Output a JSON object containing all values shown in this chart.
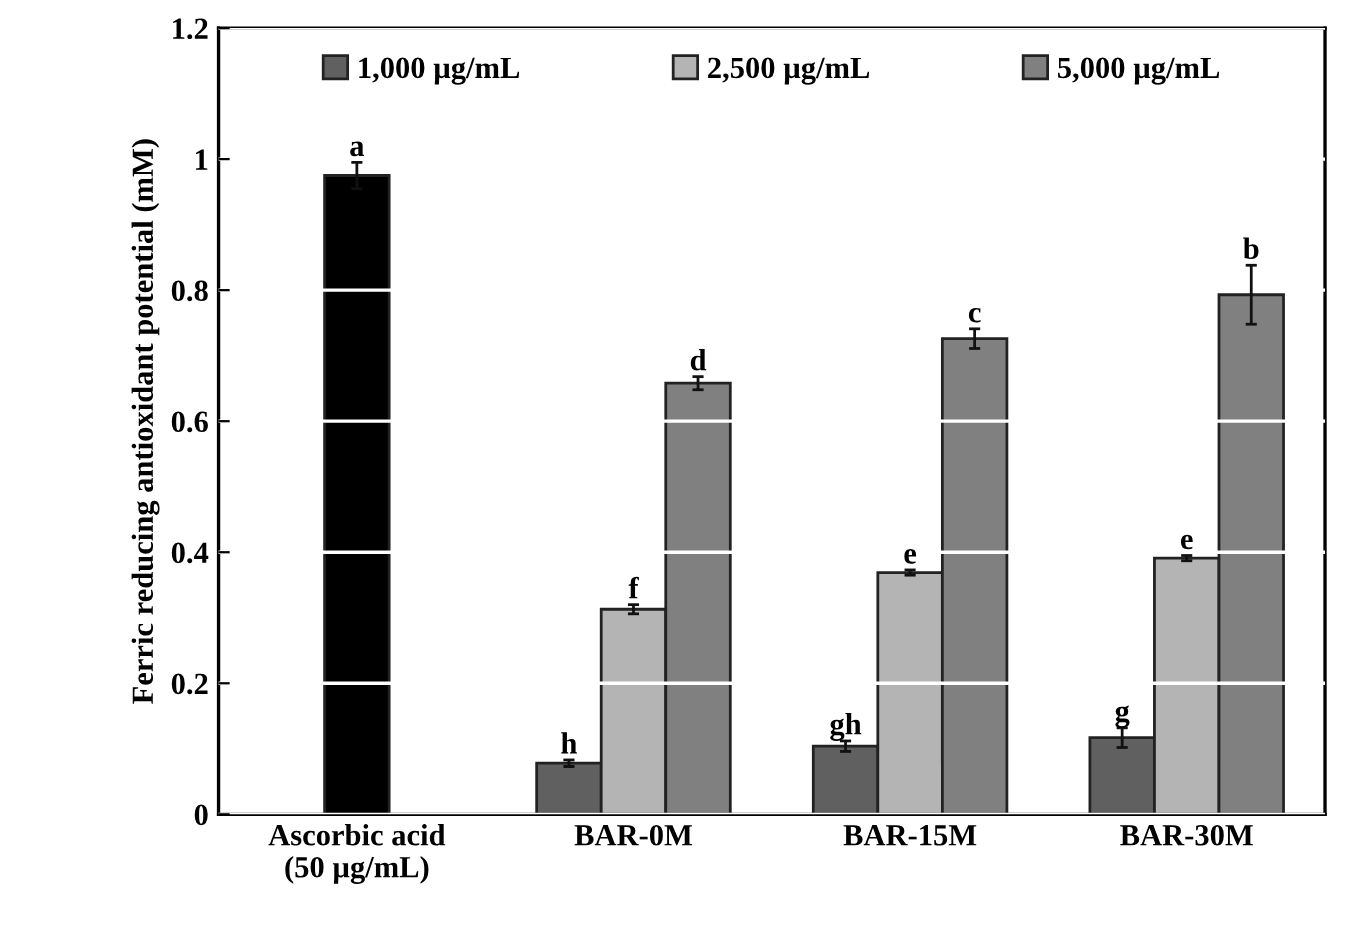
{
  "chart_data": {
    "type": "bar",
    "ylabel": "Ferric reducing antioxidant potential (mM)",
    "categories": [
      "Ascorbic acid\n(50 µg/mL)",
      "BAR-0M",
      "BAR-15M",
      "BAR-30M"
    ],
    "series": [
      {
        "color": "#000000",
        "values": [
          0.975,
          null,
          null,
          null
        ],
        "errors": [
          0.02,
          null,
          null,
          null
        ],
        "value_labels": [
          "a",
          null,
          null,
          null
        ]
      },
      {
        "name": "1,000 µg/mL",
        "color": "#606060",
        "values": [
          null,
          0.078,
          0.104,
          0.117
        ],
        "errors": [
          null,
          0.005,
          0.008,
          0.015
        ],
        "value_labels": [
          null,
          "h",
          "gh",
          "g"
        ]
      },
      {
        "name": "2,500 µg/mL",
        "color": "#b4b4b4",
        "values": [
          null,
          0.313,
          0.369,
          0.391
        ],
        "errors": [
          null,
          0.007,
          0.004,
          0.004
        ],
        "value_labels": [
          null,
          "f",
          "e",
          "e"
        ]
      },
      {
        "name": "5,000 µg/mL",
        "color": "#808080",
        "values": [
          null,
          0.658,
          0.726,
          0.793
        ],
        "errors": [
          null,
          0.01,
          0.015,
          0.045
        ],
        "value_labels": [
          null,
          "d",
          "c",
          "b"
        ]
      }
    ],
    "ylim": [
      0,
      1.2
    ],
    "yticks": [
      0,
      0.2,
      0.4,
      0.6,
      0.8,
      1,
      1.2
    ],
    "grid": "y",
    "legend": "top"
  }
}
